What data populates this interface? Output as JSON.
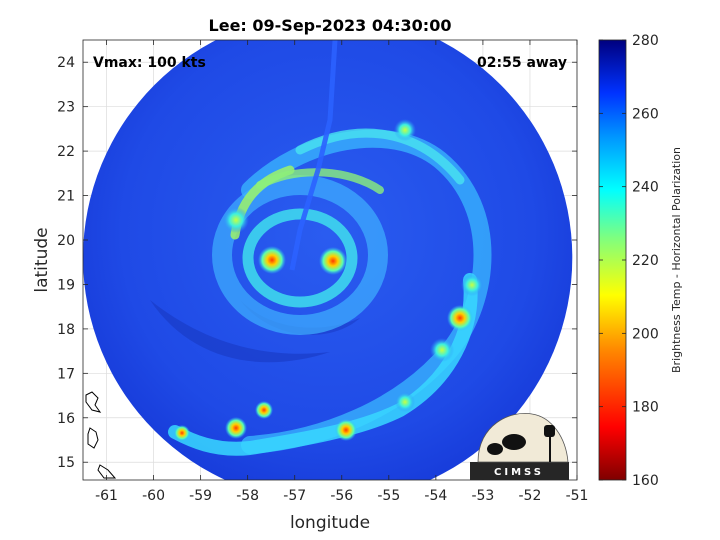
{
  "chart_data": {
    "type": "heatmap",
    "title": "Lee: 09-Sep-2023 04:30:00",
    "xlabel": "longitude",
    "ylabel": "latitude",
    "xlim": [
      -61.5,
      -51
    ],
    "ylim": [
      14.6,
      24.5
    ],
    "x_ticks": [
      "-61",
      "-60",
      "-59",
      "-58",
      "-57",
      "-56",
      "-55",
      "-54",
      "-53",
      "-52",
      "-51"
    ],
    "x_tick_values": [
      -61,
      -60,
      -59,
      -58,
      -57,
      -56,
      -55,
      -54,
      -53,
      -52,
      -51
    ],
    "y_ticks": [
      "15",
      "16",
      "17",
      "18",
      "19",
      "20",
      "21",
      "22",
      "23",
      "24"
    ],
    "y_tick_values": [
      15,
      16,
      17,
      18,
      19,
      20,
      21,
      22,
      23,
      24
    ],
    "grid": true,
    "annotations": {
      "vmax": "Vmax: 100 kts",
      "time_offset": "02:55 away"
    },
    "colorbar": {
      "label": "Brightness Temp - Horizontal Polarization",
      "range": [
        160,
        280
      ],
      "ticks": [
        "160",
        "180",
        "200",
        "220",
        "240",
        "260",
        "280"
      ],
      "tick_values": [
        160,
        180,
        200,
        220,
        240,
        260,
        280
      ]
    },
    "storm_center": {
      "lon": -56.1,
      "lat": 19.5
    },
    "swath_center": {
      "lon": -56.3,
      "lat": 19.6
    },
    "swath_radius_deg": 5.2,
    "logo_text": "CIMSS"
  }
}
